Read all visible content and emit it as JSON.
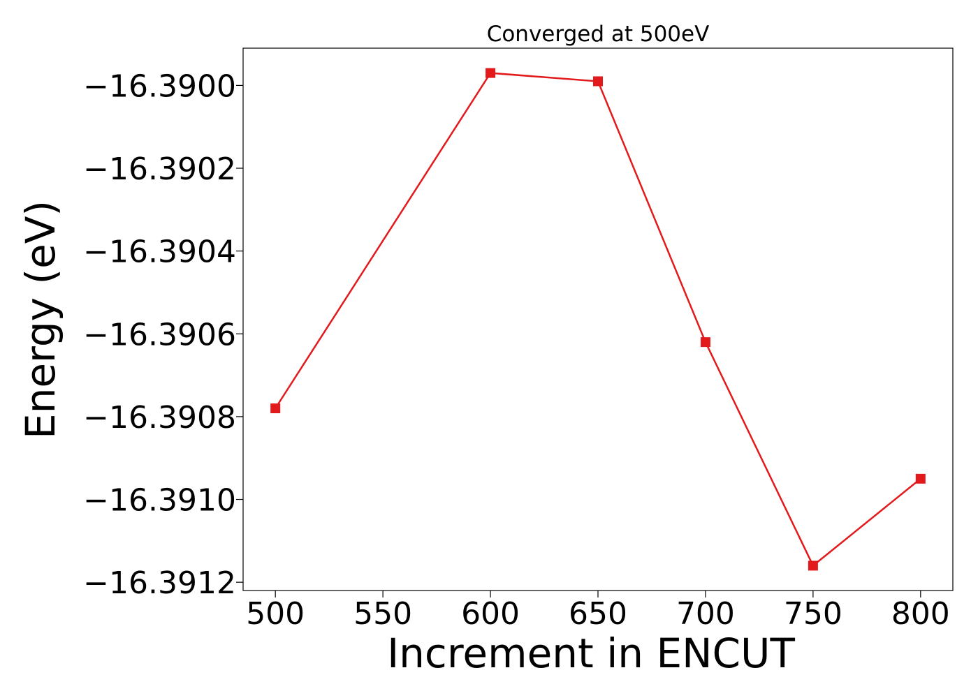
{
  "chart_data": {
    "type": "line",
    "title": "Converged at 500eV",
    "xlabel": "Increment in ENCUT",
    "ylabel": "Energy (eV)",
    "x": [
      500,
      600,
      650,
      700,
      750,
      800
    ],
    "series": [
      {
        "values": [
          -16.39078,
          -16.38997,
          -16.38999,
          -16.39062,
          -16.39116,
          -16.39095
        ],
        "color": "#e31a1c",
        "marker": "square"
      }
    ],
    "xlim": [
      485,
      815
    ],
    "ylim": [
      -16.39122,
      -16.38991
    ],
    "xticks": [
      500,
      550,
      600,
      650,
      700,
      750,
      800
    ],
    "xtick_labels": [
      "500",
      "550",
      "600",
      "650",
      "700",
      "750",
      "800"
    ],
    "yticks": [
      -16.39,
      -16.3902,
      -16.3904,
      -16.3906,
      -16.3908,
      -16.391,
      -16.3912
    ],
    "ytick_labels": [
      "−16.3900",
      "−16.3902",
      "−16.3904",
      "−16.3906",
      "−16.3908",
      "−16.3910",
      "−16.3912"
    ],
    "grid": false,
    "legend": "none"
  }
}
